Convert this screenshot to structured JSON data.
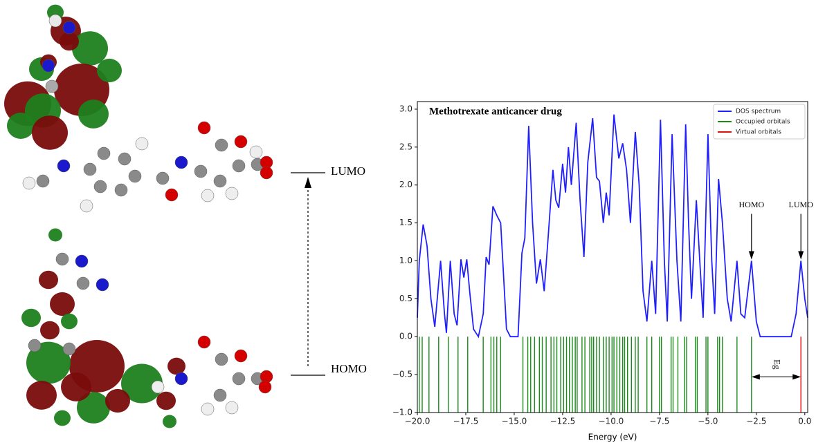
{
  "diagram": {
    "lumo_label": "LUMO",
    "homo_label": "HOMO"
  },
  "chart_data": {
    "type": "line",
    "title": "Methotrexate anticancer drug",
    "xlabel": "Energy (eV)",
    "xlim": [
      -20,
      0.15
    ],
    "ylim": [
      -1,
      3.1
    ],
    "xticks": [
      {
        "value": -20,
        "label": "−20.0"
      },
      {
        "value": -17.5,
        "label": "−17.5"
      },
      {
        "value": -15,
        "label": "−15.0"
      },
      {
        "value": -12.5,
        "label": "−12.5"
      },
      {
        "value": -10,
        "label": "−10.0"
      },
      {
        "value": -7.5,
        "label": "−7.5"
      },
      {
        "value": -5,
        "label": "−5.0"
      },
      {
        "value": -2.5,
        "label": "−2.5"
      },
      {
        "value": 0,
        "label": "0.0"
      }
    ],
    "yticks": [
      {
        "value": -1,
        "label": "−1.0"
      },
      {
        "value": -0.5,
        "label": "−0.5"
      },
      {
        "value": 0,
        "label": "0.0"
      },
      {
        "value": 0.5,
        "label": "0.5"
      },
      {
        "value": 1,
        "label": "1.0"
      },
      {
        "value": 1.5,
        "label": "1.5"
      },
      {
        "value": 2,
        "label": "2.0"
      },
      {
        "value": 2.5,
        "label": "2.5"
      },
      {
        "value": 3,
        "label": "3.0"
      }
    ],
    "legend": "upper right",
    "series": [
      {
        "name": "DOS spectrum",
        "color": "#2020ff",
        "style": "curve",
        "x": [
          -20,
          -19.9,
          -19.7,
          -19.5,
          -19.3,
          -19.1,
          -18.8,
          -18.6,
          -18.5,
          -18.3,
          -18.1,
          -17.95,
          -17.75,
          -17.6,
          -17.45,
          -17.3,
          -17.1,
          -16.85,
          -16.6,
          -16.45,
          -16.3,
          -16.1,
          -15.9,
          -15.7,
          -15.55,
          -15.4,
          -15.2,
          -14.8,
          -14.6,
          -14.45,
          -14.25,
          -14.05,
          -13.85,
          -13.65,
          -13.45,
          -13.25,
          -13,
          -12.85,
          -12.7,
          -12.5,
          -12.35,
          -12.2,
          -12.05,
          -11.8,
          -11.6,
          -11.4,
          -11.2,
          -10.95,
          -10.75,
          -10.6,
          -10.4,
          -10.25,
          -10.1,
          -9.85,
          -9.6,
          -9.4,
          -9.2,
          -9,
          -8.75,
          -8.55,
          -8.35,
          -8.15,
          -7.9,
          -7.7,
          -7.45,
          -7.25,
          -7.1,
          -6.85,
          -6.6,
          -6.4,
          -6.15,
          -6,
          -5.85,
          -5.6,
          -5.4,
          -5.25,
          -5,
          -4.8,
          -4.65,
          -4.45,
          -4.25,
          -4,
          -3.8,
          -3.5,
          -3.3,
          -3.1,
          -2.75,
          -2.5,
          -2.3,
          -0.7,
          -0.45,
          -0.2,
          0,
          0.15
        ],
        "values": [
          0.25,
          1.0,
          1.48,
          1.2,
          0.5,
          0.13,
          1.0,
          0.3,
          0.05,
          1.0,
          0.3,
          0.15,
          1.02,
          0.78,
          1.02,
          0.6,
          0.1,
          0.0,
          0.3,
          1.05,
          0.95,
          1.72,
          1.6,
          1.5,
          0.8,
          0.1,
          0.0,
          0.0,
          1.1,
          1.3,
          2.78,
          1.5,
          0.7,
          1.02,
          0.6,
          1.3,
          2.2,
          1.8,
          1.7,
          2.28,
          1.9,
          2.5,
          2.0,
          2.82,
          1.8,
          1.05,
          2.3,
          2.88,
          2.1,
          2.05,
          1.5,
          1.9,
          1.6,
          2.93,
          2.35,
          2.55,
          2.2,
          1.5,
          2.7,
          2.0,
          0.6,
          0.2,
          1.0,
          0.3,
          2.86,
          1.0,
          0.2,
          2.67,
          1.0,
          0.2,
          2.8,
          1.5,
          0.5,
          1.8,
          0.9,
          0.25,
          2.67,
          1.0,
          0.3,
          2.08,
          1.5,
          0.5,
          0.2,
          1.0,
          0.3,
          0.25,
          1.0,
          0.2,
          0.0,
          0.0,
          0.3,
          1.0,
          0.5,
          0.25
        ]
      },
      {
        "name": "Occupied orbitals",
        "color": "#1a8a1a",
        "style": "sticks",
        "x": [
          -19.9,
          -19.75,
          -19.4,
          -18.9,
          -18.4,
          -17.9,
          -17.4,
          -16.6,
          -16.2,
          -16.05,
          -15.9,
          -15.7,
          -14.55,
          -14.3,
          -14.15,
          -13.95,
          -13.7,
          -13.55,
          -13.35,
          -13.1,
          -12.95,
          -12.8,
          -12.6,
          -12.45,
          -12.3,
          -12.15,
          -12,
          -11.85,
          -11.75,
          -11.5,
          -11.35,
          -11.1,
          -11,
          -10.9,
          -10.75,
          -10.6,
          -10.4,
          -10.25,
          -10.1,
          -9.95,
          -9.85,
          -9.7,
          -9.55,
          -9.4,
          -9.3,
          -9.15,
          -8.95,
          -8.75,
          -8.6,
          -8.15,
          -7.9,
          -7.5,
          -7.4,
          -6.9,
          -6.8,
          -6.55,
          -6.2,
          -6.1,
          -5.65,
          -5.55,
          -5.1,
          -5,
          -4.5,
          -4.4,
          -4.25,
          -3.5,
          -2.75
        ],
        "values": [
          -1,
          -1,
          -1,
          -1,
          -1,
          -1,
          -1,
          -1,
          -1,
          -1,
          -1,
          -1,
          -1,
          -1,
          -1,
          -1,
          -1,
          -1,
          -1,
          -1,
          -1,
          -1,
          -1,
          -1,
          -1,
          -1,
          -1,
          -1,
          -1,
          -1,
          -1,
          -1,
          -1,
          -1,
          -1,
          -1,
          -1,
          -1,
          -1,
          -1,
          -1,
          -1,
          -1,
          -1,
          -1,
          -1,
          -1,
          -1,
          -1,
          -1,
          -1,
          -1,
          -1,
          -1,
          -1,
          -1,
          -1,
          -1,
          -1,
          -1,
          -1,
          -1,
          -1,
          -1,
          -1,
          -1,
          -1
        ]
      },
      {
        "name": "Virtual orbitals",
        "color": "#e01010",
        "style": "sticks",
        "x": [
          -0.2
        ],
        "values": [
          -1
        ]
      }
    ],
    "annotations": [
      {
        "text": "HOMO",
        "x": -2.75,
        "y": 1.0
      },
      {
        "text": "LUMO",
        "x": -0.2,
        "y": 1.0
      }
    ],
    "gap": {
      "text": "Eg",
      "x_from": -2.75,
      "x_to": -0.2,
      "y": -0.53
    }
  }
}
